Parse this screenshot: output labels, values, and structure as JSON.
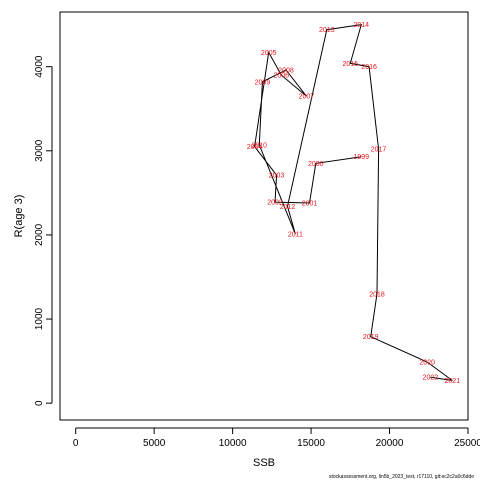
{
  "chart_data": {
    "type": "line",
    "xlabel": "SSB",
    "ylabel": "R(age 3)",
    "xlim": [
      -1000,
      25000
    ],
    "ylim": [
      -200,
      4650
    ],
    "xticks": [
      0,
      5000,
      10000,
      15000,
      20000,
      25000
    ],
    "yticks": [
      0,
      1000,
      2000,
      3000,
      4000
    ],
    "grid": false,
    "line_color": "#000000",
    "label_color": "#e8141c",
    "points": [
      {
        "year": "1999",
        "x": 18200,
        "y": 2930
      },
      {
        "year": "2000",
        "x": 15300,
        "y": 2850
      },
      {
        "year": "2001",
        "x": 14900,
        "y": 2380
      },
      {
        "year": "2002",
        "x": 12700,
        "y": 2390
      },
      {
        "year": "2003",
        "x": 12800,
        "y": 2710
      },
      {
        "year": "2004",
        "x": 11400,
        "y": 3050
      },
      {
        "year": "2005",
        "x": 12300,
        "y": 4170
      },
      {
        "year": "2006",
        "x": 13100,
        "y": 3900
      },
      {
        "year": "2007",
        "x": 14700,
        "y": 3650
      },
      {
        "year": "2008",
        "x": 13400,
        "y": 3960
      },
      {
        "year": "2009",
        "x": 11900,
        "y": 3820
      },
      {
        "year": "2010",
        "x": 11700,
        "y": 3070
      },
      {
        "year": "2011",
        "x": 14000,
        "y": 2010
      },
      {
        "year": "2012",
        "x": 13500,
        "y": 2340
      },
      {
        "year": "2013",
        "x": 16000,
        "y": 4440
      },
      {
        "year": "2014",
        "x": 18200,
        "y": 4500
      },
      {
        "year": "2015",
        "x": 17500,
        "y": 4040
      },
      {
        "year": "2016",
        "x": 18700,
        "y": 4000
      },
      {
        "year": "2017",
        "x": 19300,
        "y": 3020
      },
      {
        "year": "2018",
        "x": 19200,
        "y": 1300
      },
      {
        "year": "2019",
        "x": 18800,
        "y": 790
      },
      {
        "year": "2020",
        "x": 22400,
        "y": 490
      },
      {
        "year": "2021",
        "x": 24000,
        "y": 270
      },
      {
        "year": "2022",
        "x": 22600,
        "y": 310
      }
    ]
  },
  "credit": "stockassessment.org, lin5b_2023_test, r17110, git:ec2c2a0c6dde"
}
